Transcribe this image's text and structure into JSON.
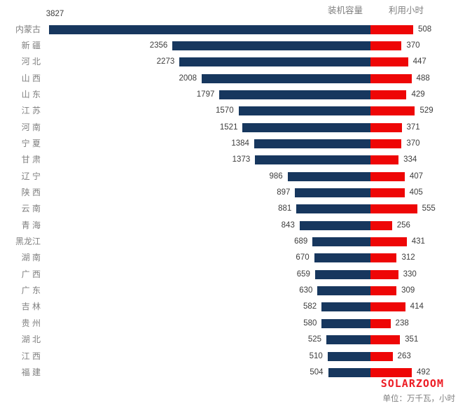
{
  "legend": {
    "capacity_label": "装机容量",
    "hours_label": "利用小时"
  },
  "footer": {
    "brand": "SOLARZOOM",
    "unit_note": "单位：万千瓦，小时"
  },
  "colors": {
    "capacity_bar": "#17375E",
    "hours_bar": "#EE0606",
    "category_text": "#808080",
    "value_text": "#3d3d3d",
    "brand_red": "#ED1C24"
  },
  "chart_data": {
    "type": "bar",
    "subtype": "diverging-horizontal",
    "title": "",
    "xlabel": "",
    "ylabel": "",
    "unit_note": "单位：万千瓦，小时",
    "legend_position": "top-right",
    "grid": false,
    "categories": [
      "内蒙古",
      "新 疆",
      "河 北",
      "山 西",
      "山 东",
      "江 苏",
      "河 南",
      "宁 夏",
      "甘 肃",
      "辽 宁",
      "陕 西",
      "云 南",
      "青 海",
      "黑龙江",
      "湖 南",
      "广 西",
      "广 东",
      "吉 林",
      "贵 州",
      "湖 北",
      "江 西",
      "福 建"
    ],
    "series": [
      {
        "name": "装机容量",
        "direction": "left",
        "color": "#17375E",
        "values": [
          3827,
          2356,
          2273,
          2008,
          1797,
          1570,
          1521,
          1384,
          1373,
          986,
          897,
          881,
          843,
          689,
          670,
          659,
          630,
          582,
          580,
          525,
          510,
          504
        ]
      },
      {
        "name": "利用小时",
        "direction": "right",
        "color": "#EE0606",
        "values": [
          508,
          370,
          447,
          488,
          429,
          529,
          371,
          370,
          334,
          407,
          405,
          555,
          256,
          431,
          312,
          330,
          309,
          414,
          238,
          351,
          263,
          492
        ]
      }
    ]
  }
}
